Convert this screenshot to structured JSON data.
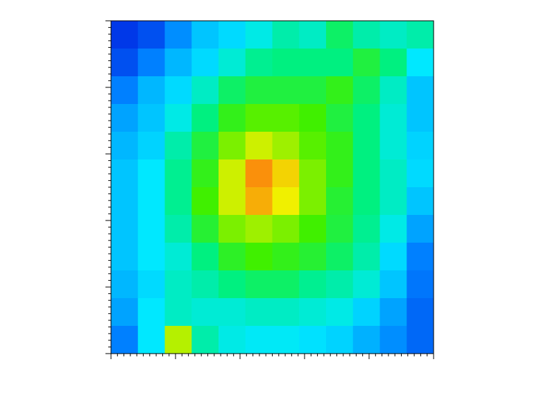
{
  "chart_data": {
    "type": "heatmap",
    "colormap": [
      [
        0,
        "#0020e0"
      ],
      [
        0.2,
        "#0080ff"
      ],
      [
        0.35,
        "#00e8ff"
      ],
      [
        0.5,
        "#00f080"
      ],
      [
        0.6,
        "#40f000"
      ],
      [
        0.75,
        "#f0f000"
      ],
      [
        0.9,
        "#ff6010"
      ]
    ],
    "z": [
      [
        0.05,
        0.1,
        0.22,
        0.3,
        0.33,
        0.38,
        0.45,
        0.42,
        0.52,
        0.45,
        0.42,
        0.45
      ],
      [
        0.1,
        0.2,
        0.28,
        0.33,
        0.4,
        0.48,
        0.5,
        0.5,
        0.5,
        0.55,
        0.5,
        0.35
      ],
      [
        0.2,
        0.28,
        0.33,
        0.42,
        0.52,
        0.55,
        0.55,
        0.55,
        0.58,
        0.52,
        0.42,
        0.3
      ],
      [
        0.25,
        0.3,
        0.38,
        0.5,
        0.58,
        0.62,
        0.62,
        0.6,
        0.55,
        0.5,
        0.4,
        0.3
      ],
      [
        0.28,
        0.32,
        0.45,
        0.55,
        0.65,
        0.72,
        0.68,
        0.62,
        0.58,
        0.5,
        0.4,
        0.32
      ],
      [
        0.3,
        0.35,
        0.48,
        0.58,
        0.72,
        0.85,
        0.78,
        0.65,
        0.58,
        0.5,
        0.42,
        0.33
      ],
      [
        0.3,
        0.35,
        0.48,
        0.6,
        0.72,
        0.82,
        0.75,
        0.65,
        0.56,
        0.5,
        0.42,
        0.3
      ],
      [
        0.3,
        0.35,
        0.45,
        0.56,
        0.65,
        0.68,
        0.65,
        0.6,
        0.55,
        0.48,
        0.38,
        0.25
      ],
      [
        0.3,
        0.35,
        0.4,
        0.5,
        0.57,
        0.6,
        0.58,
        0.56,
        0.52,
        0.45,
        0.33,
        0.2
      ],
      [
        0.28,
        0.33,
        0.42,
        0.45,
        0.5,
        0.52,
        0.52,
        0.48,
        0.45,
        0.4,
        0.3,
        0.18
      ],
      [
        0.25,
        0.35,
        0.42,
        0.4,
        0.4,
        0.42,
        0.42,
        0.4,
        0.38,
        0.32,
        0.25,
        0.15
      ],
      [
        0.2,
        0.35,
        0.7,
        0.45,
        0.38,
        0.36,
        0.36,
        0.34,
        0.32,
        0.27,
        0.22,
        0.15
      ]
    ]
  }
}
